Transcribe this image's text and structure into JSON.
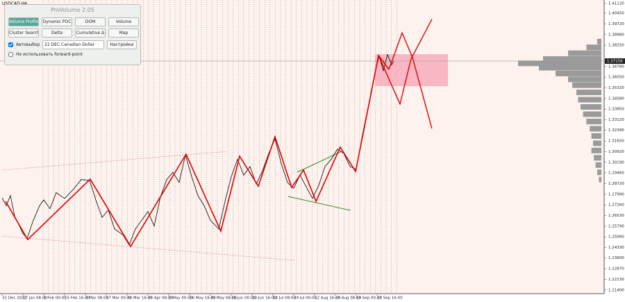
{
  "symbol": "USDCAD,H4",
  "panel": {
    "title": "ProVolume 2.05",
    "buttons": [
      "Volume Profile",
      "Dynamic POC",
      "DOM",
      "Volume",
      "Cluster Search",
      "Delta",
      "Cumulative Δ",
      "Map"
    ],
    "auto_select": "Автовыбор",
    "instrument": "22 DEC Canadian Dollar",
    "settings": "Настройки",
    "forward_point": "Не использовать forward-point"
  },
  "chart_data": {
    "type": "line",
    "color": "#000000",
    "x": [
      0,
      0.2,
      0.4,
      0.6,
      0.8,
      1.0,
      1.2,
      1.5,
      1.8,
      2.0,
      2.3,
      2.6,
      3.0,
      3.4,
      3.8,
      4.2,
      4.5,
      4.8,
      5.1,
      5.4,
      5.8,
      6.1,
      6.4,
      6.7,
      7.0,
      7.3,
      7.6,
      7.9,
      8.2,
      8.5,
      8.8,
      9.1,
      9.4,
      9.7,
      10.0,
      10.4,
      10.7,
      11.0,
      11.3,
      11.6,
      11.9,
      12.2,
      12.5,
      12.8,
      13.1,
      13.4,
      13.7,
      14.0,
      14.3,
      14.6,
      14.9,
      15.2,
      15.5,
      15.8,
      16.1,
      16.4,
      16.7,
      17.0,
      17.3,
      17.6,
      17.9,
      18.1,
      18.3,
      18.5,
      18.7,
      18.8
    ],
    "values": [
      1.2774,
      1.272,
      1.279,
      1.265,
      1.259,
      1.253,
      1.2495,
      1.262,
      1.272,
      1.276,
      1.27,
      1.281,
      1.277,
      1.283,
      1.29,
      1.2895,
      1.276,
      1.264,
      1.269,
      1.256,
      1.252,
      1.245,
      1.256,
      1.262,
      1.268,
      1.258,
      1.278,
      1.29,
      1.295,
      1.288,
      1.307,
      1.292,
      1.279,
      1.272,
      1.262,
      1.256,
      1.275,
      1.292,
      1.304,
      1.293,
      1.299,
      1.287,
      1.296,
      1.308,
      1.318,
      1.301,
      1.288,
      1.284,
      1.293,
      1.285,
      1.277,
      1.286,
      1.299,
      1.304,
      1.311,
      1.308,
      1.299,
      1.297,
      1.321,
      1.342,
      1.364,
      1.375,
      1.365,
      1.376,
      1.369,
      1.3715
    ],
    "xlim": [
      -0.1,
      28.9
    ],
    "ylim": [
      1.2115,
      1.4112
    ],
    "xticks": [
      {
        "value": 0,
        "label": "31 Dec 2021"
      },
      {
        "value": 1,
        "label": "17 Jan 08:00"
      },
      {
        "value": 2,
        "label": "1 Feb 00:00"
      },
      {
        "value": 3,
        "label": "15 Feb 16:00"
      },
      {
        "value": 4,
        "label": "2 Mar 08:00"
      },
      {
        "value": 5,
        "label": "17 Mar 00:00"
      },
      {
        "value": 6,
        "label": "31 Mar 16:00"
      },
      {
        "value": 7,
        "label": "15 Apr 08:00"
      },
      {
        "value": 8,
        "label": "2 May 00:00"
      },
      {
        "value": 9,
        "label": "16 May 16:00"
      },
      {
        "value": 10,
        "label": "31 May 08:00"
      },
      {
        "value": 11,
        "label": "15 Jun 00:00"
      },
      {
        "value": 12,
        "label": "29 Jun 16:00"
      },
      {
        "value": 13,
        "label": "14 Jul 08:00"
      },
      {
        "value": 14,
        "label": "29 Jul 00:00"
      },
      {
        "value": 15,
        "label": "12 Aug 16:00"
      },
      {
        "value": 16,
        "label": "29 Aug 08:00"
      },
      {
        "value": 17,
        "label": "13 Sep 00:00"
      },
      {
        "value": 18,
        "label": "27 Sep 16:00"
      }
    ],
    "yticks": [
      {
        "value": 1.4112,
        "label": "1.41120"
      },
      {
        "value": 1.4045,
        "label": "1.40450"
      },
      {
        "value": 1.3972,
        "label": "1.39720"
      },
      {
        "value": 1.3898,
        "label": "1.38980"
      },
      {
        "value": 1.3825,
        "label": "1.38250"
      },
      {
        "value": 1.3678,
        "label": "1.36780"
      },
      {
        "value": 1.3605,
        "label": "1.36050"
      },
      {
        "value": 1.3532,
        "label": "1.35320"
      },
      {
        "value": 1.3458,
        "label": "1.34580"
      },
      {
        "value": 1.3385,
        "label": "1.33850"
      },
      {
        "value": 1.3312,
        "label": "1.33120"
      },
      {
        "value": 1.3239,
        "label": "1.32390"
      },
      {
        "value": 1.3165,
        "label": "1.31650"
      },
      {
        "value": 1.3092,
        "label": "1.30920"
      },
      {
        "value": 1.3019,
        "label": "1.30190"
      },
      {
        "value": 1.2946,
        "label": "1.29460"
      },
      {
        "value": 1.2872,
        "label": "1.28720"
      },
      {
        "value": 1.2799,
        "label": "1.27990"
      },
      {
        "value": 1.2726,
        "label": "1.27260"
      },
      {
        "value": 1.2653,
        "label": "1.26530"
      },
      {
        "value": 1.2579,
        "label": "1.25790"
      },
      {
        "value": 1.2506,
        "label": "1.25060"
      },
      {
        "value": 1.2433,
        "label": "1.24330"
      },
      {
        "value": 1.236,
        "label": "1.23600"
      },
      {
        "value": 1.2287,
        "label": "1.22870"
      },
      {
        "value": 1.2213,
        "label": "1.22130"
      },
      {
        "value": 1.214,
        "label": "1.21400"
      }
    ],
    "current_price": {
      "value": 1.37156,
      "label": "1.37156"
    },
    "zigzag": {
      "color": "#e00000",
      "x": [
        0.17,
        1.23,
        4.23,
        6.17,
        8.83,
        10.5,
        11.4,
        12.3,
        13.1,
        13.9,
        14.47,
        15.07,
        16.23,
        16.97,
        18.07,
        18.57
      ],
      "values": [
        1.275,
        1.2487,
        1.2903,
        1.244,
        1.3075,
        1.2545,
        1.3061,
        1.2855,
        1.3195,
        1.2846,
        1.2965,
        1.275,
        1.3123,
        1.2956,
        1.3754,
        1.3658
      ]
    },
    "projections": [
      {
        "color": "#e00000",
        "x": [
          18.07,
          19.1,
          19.63,
          20.63
        ],
        "values": [
          1.3754,
          1.342,
          1.373,
          1.4003
        ]
      },
      {
        "color": "#e00000",
        "x": [
          18.57,
          19.2,
          19.7,
          20.63
        ],
        "values": [
          1.3658,
          1.391,
          1.374,
          1.3252
        ]
      }
    ],
    "zone": {
      "color": "#f6a3b4",
      "xlim": [
        17.9,
        21.4
      ],
      "ylim": [
        1.3543,
        1.3763
      ]
    },
    "trendlines": [
      {
        "color": "#2f8a1f",
        "dash": false,
        "x": [
          14.17,
          16.3
        ],
        "values": [
          1.2951,
          1.3094
        ]
      },
      {
        "color": "#2f8a1f",
        "dash": false,
        "x": [
          13.73,
          16.73
        ],
        "values": [
          1.2784,
          1.2688
        ]
      },
      {
        "color": "#d07070",
        "dash": true,
        "x": [
          0,
          10.8
        ],
        "values": [
          1.2965,
          1.3094
        ]
      },
      {
        "color": "#d07070",
        "dash": true,
        "x": [
          0,
          14.07
        ],
        "values": [
          1.2511,
          1.2344
        ]
      }
    ],
    "profile": {
      "color": "#9a9a9a",
      "prices": [
        1.385,
        1.381,
        1.377,
        1.373,
        1.37,
        1.367,
        1.363,
        1.359,
        1.355,
        1.35,
        1.345,
        1.34,
        1.335,
        1.33,
        1.325,
        1.32,
        1.315,
        1.31,
        1.305,
        1.3,
        1.295,
        1.29
      ],
      "volumes": [
        5,
        18,
        40,
        70,
        100,
        75,
        55,
        40,
        35,
        30,
        28,
        25,
        22,
        18,
        14,
        12,
        10,
        12,
        9,
        7,
        5,
        3
      ]
    }
  }
}
